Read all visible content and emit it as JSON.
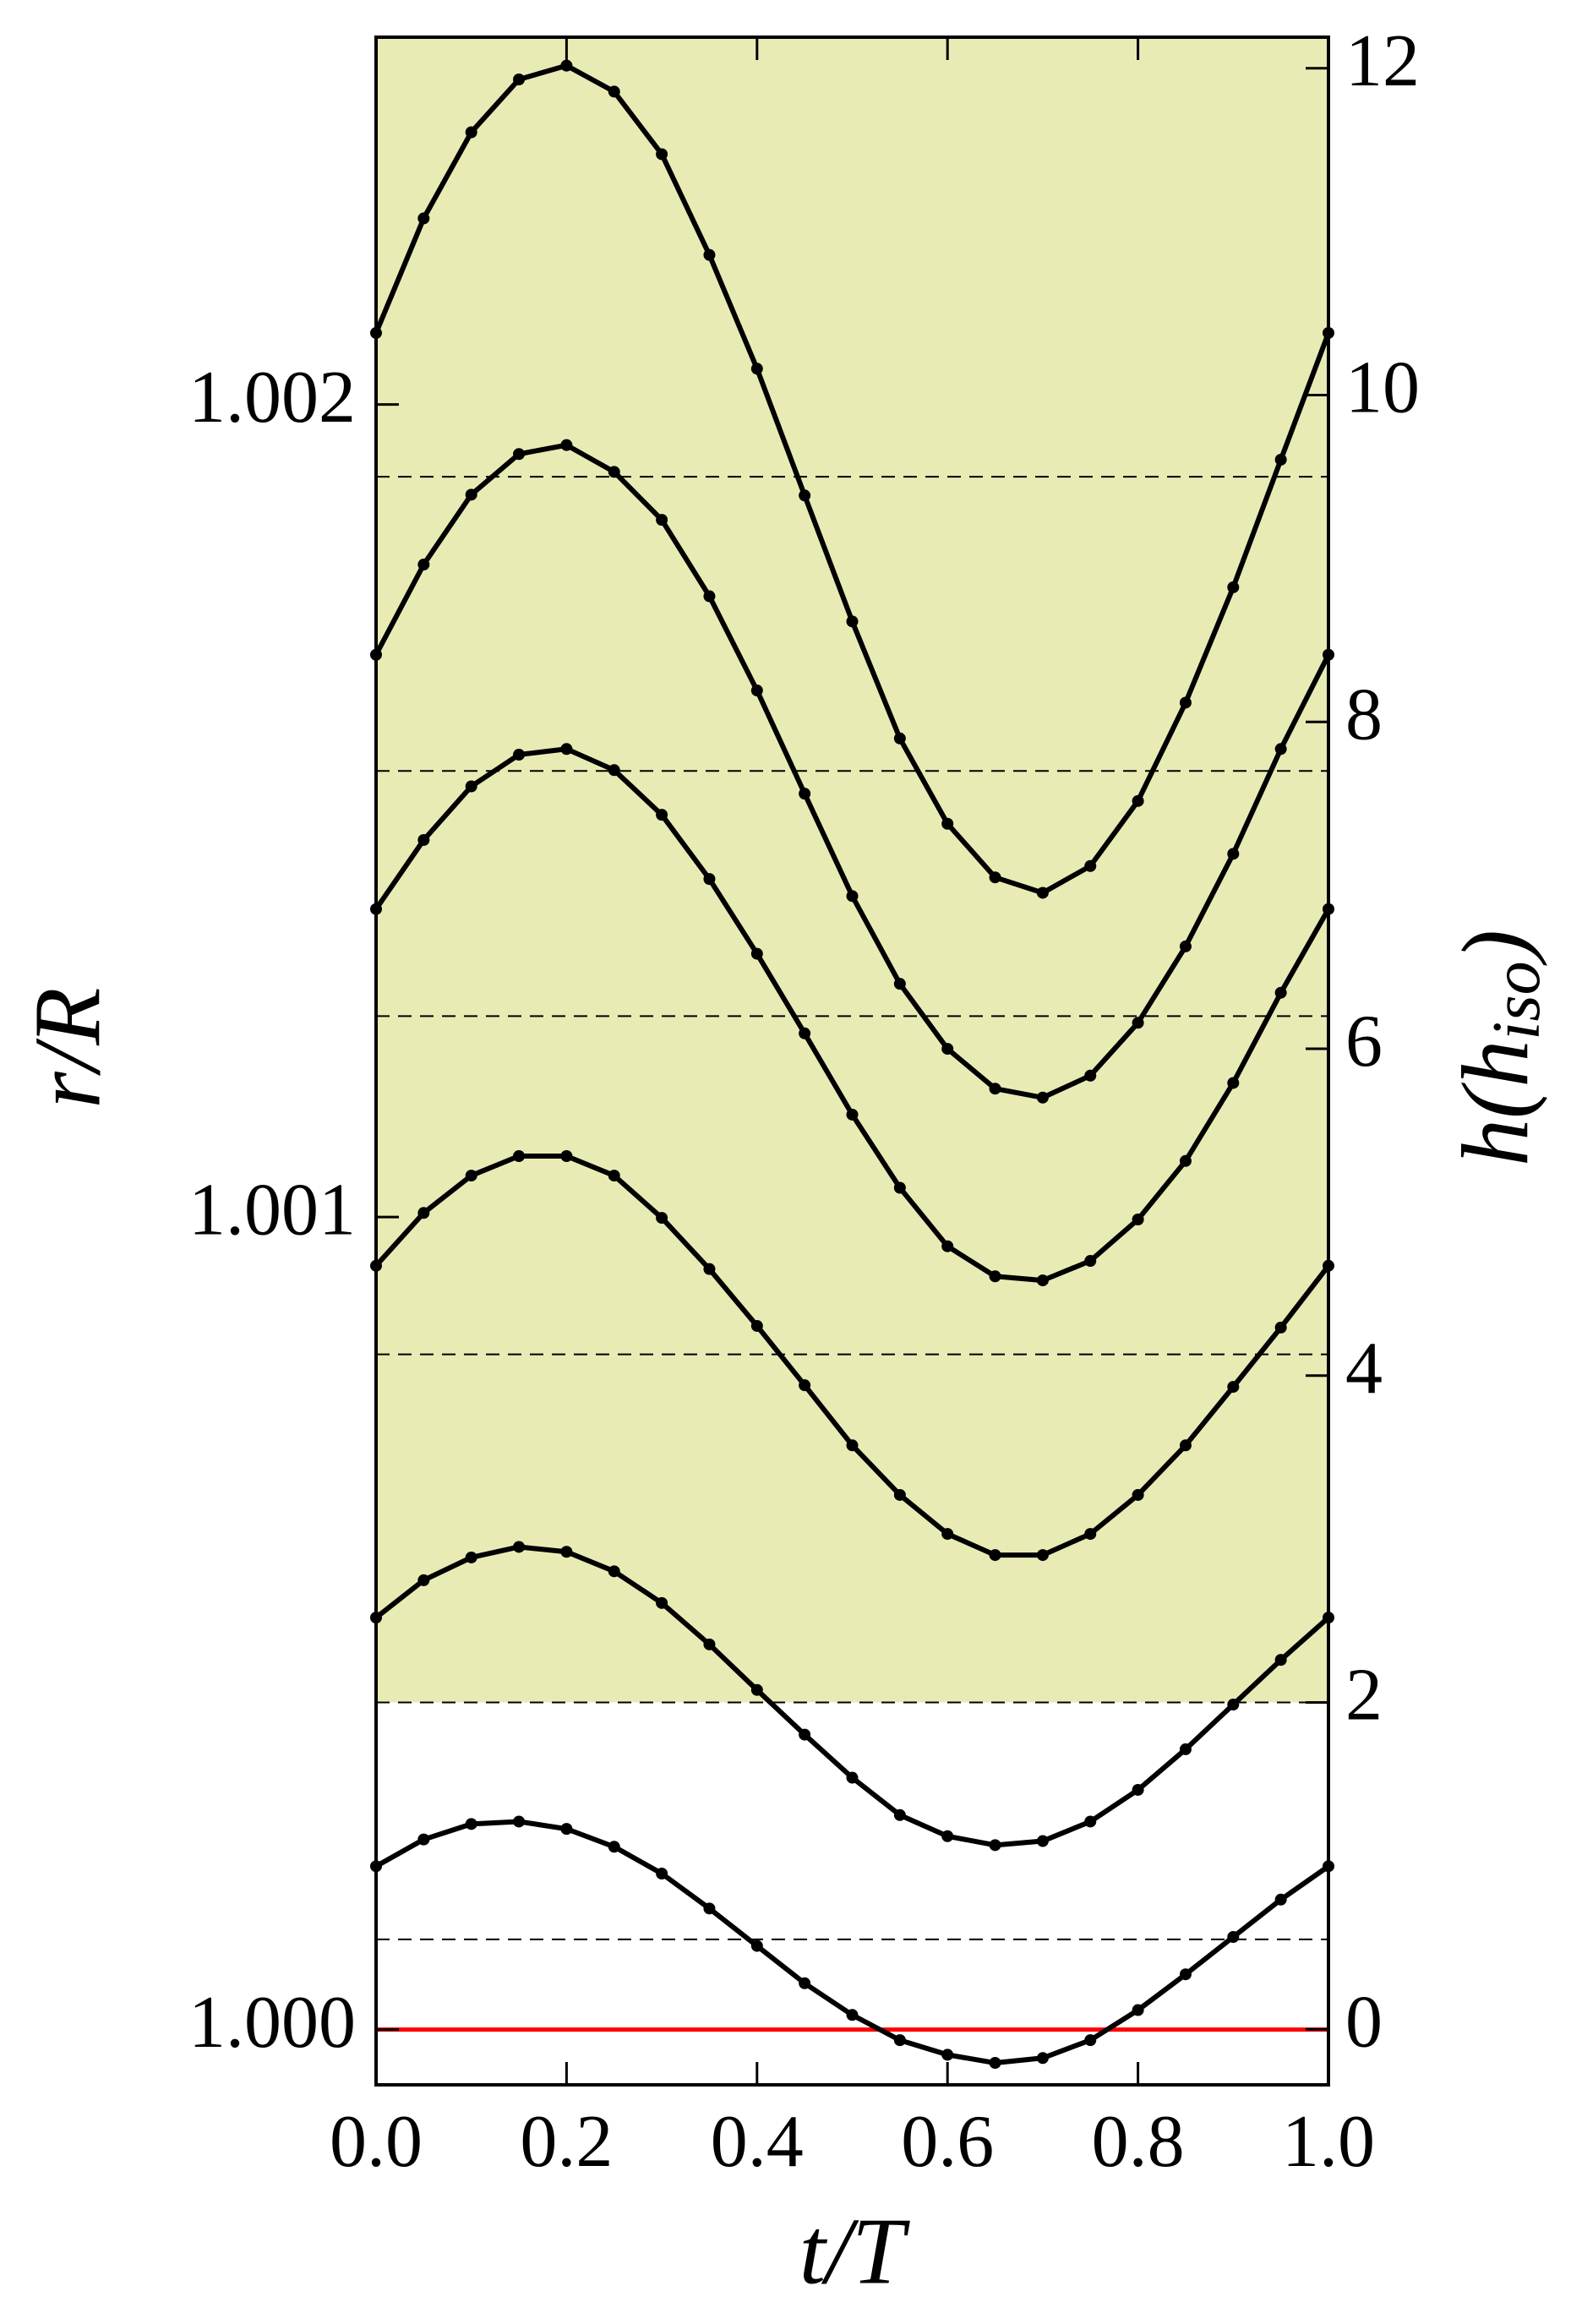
{
  "chart_data": {
    "type": "line",
    "xlabel": "t/T",
    "ylabel": "r/R",
    "y2label": [
      "h(h",
      "iso",
      ")"
    ],
    "x": [
      0,
      0.05,
      0.1,
      0.15,
      0.2,
      0.25,
      0.3,
      0.35,
      0.4,
      0.45,
      0.5,
      0.55,
      0.6,
      0.65,
      0.7,
      0.75,
      0.8,
      0.85,
      0.9,
      0.95,
      1.0
    ],
    "xlim": [
      0,
      1
    ],
    "xticks": [
      {
        "value": 0,
        "label": "0.0"
      },
      {
        "value": 0.2,
        "label": "0.2"
      },
      {
        "value": 0.4,
        "label": "0.4"
      },
      {
        "value": 0.6,
        "label": "0.6"
      },
      {
        "value": 0.8,
        "label": "0.8"
      },
      {
        "value": 1,
        "label": "1.0"
      }
    ],
    "ylim": [
      0.999932,
      1.002452
    ],
    "yticks": [
      {
        "value": 1.0,
        "label": "1.000"
      },
      {
        "value": 1.001,
        "label": "1.001"
      },
      {
        "value": 1.002,
        "label": "1.002"
      }
    ],
    "y2lim": [
      -0.34,
      12.19
    ],
    "y2ticks": [
      0,
      2,
      4,
      6,
      8,
      10,
      12
    ],
    "shaded_above": 2,
    "shade_color": "#e9ebb5",
    "dashed_lines": [
      0.55,
      2,
      4.13,
      6.2,
      7.7,
      9.5
    ],
    "reference_line": {
      "value": 1.0,
      "color": "#ff0000"
    },
    "series": [
      {
        "color": "#000000",
        "values": [
          1.000201,
          1.000234,
          1.000253,
          1.000256,
          1.000247,
          1.000225,
          1.000192,
          1.000149,
          1.000103,
          1.000057,
          1.000018,
          0.999987,
          0.999969,
          0.999959,
          0.999965,
          0.999987,
          1.000024,
          1.000068,
          1.000114,
          1.00016,
          1.000201
        ]
      },
      {
        "color": "#000000",
        "values": [
          1.000507,
          1.000553,
          1.000581,
          1.000594,
          1.000588,
          1.000564,
          1.000525,
          1.000474,
          1.000418,
          1.000363,
          1.00031,
          1.000264,
          1.000238,
          1.000227,
          1.000232,
          1.000256,
          1.000295,
          1.000345,
          1.0004,
          1.000455,
          1.000507
        ]
      },
      {
        "color": "#000000",
        "values": [
          1.00094,
          1.001005,
          1.001051,
          1.001075,
          1.001075,
          1.001051,
          1.000999,
          1.000936,
          1.000866,
          1.000793,
          1.000719,
          1.000658,
          1.00061,
          1.000584,
          1.000584,
          1.00061,
          1.000658,
          1.000719,
          1.000791,
          1.000864,
          1.00094
        ]
      },
      {
        "color": "#000000",
        "values": [
          1.001379,
          1.001464,
          1.00153,
          1.001569,
          1.001576,
          1.00155,
          1.001495,
          1.001416,
          1.001324,
          1.001226,
          1.001126,
          1.001036,
          1.000964,
          1.000927,
          1.000922,
          1.000946,
          1.000997,
          1.001069,
          1.001165,
          1.001276,
          1.001379
        ]
      },
      {
        "color": "#000000",
        "values": [
          1.001692,
          1.001803,
          1.001889,
          1.001939,
          1.00195,
          1.001917,
          1.001858,
          1.001764,
          1.001648,
          1.001521,
          1.001395,
          1.001287,
          1.001207,
          1.001158,
          1.001147,
          1.001174,
          1.001239,
          1.001333,
          1.001447,
          1.001576,
          1.001692
        ]
      },
      {
        "color": "#000000",
        "values": [
          1.002088,
          1.002229,
          1.002335,
          1.0024,
          1.002417,
          1.002385,
          1.002308,
          1.002184,
          1.002044,
          1.001888,
          1.001733,
          1.001589,
          1.001484,
          1.001418,
          1.001399,
          1.001432,
          1.001512,
          1.001633,
          1.001775,
          1.001932,
          1.002088
        ]
      }
    ]
  }
}
